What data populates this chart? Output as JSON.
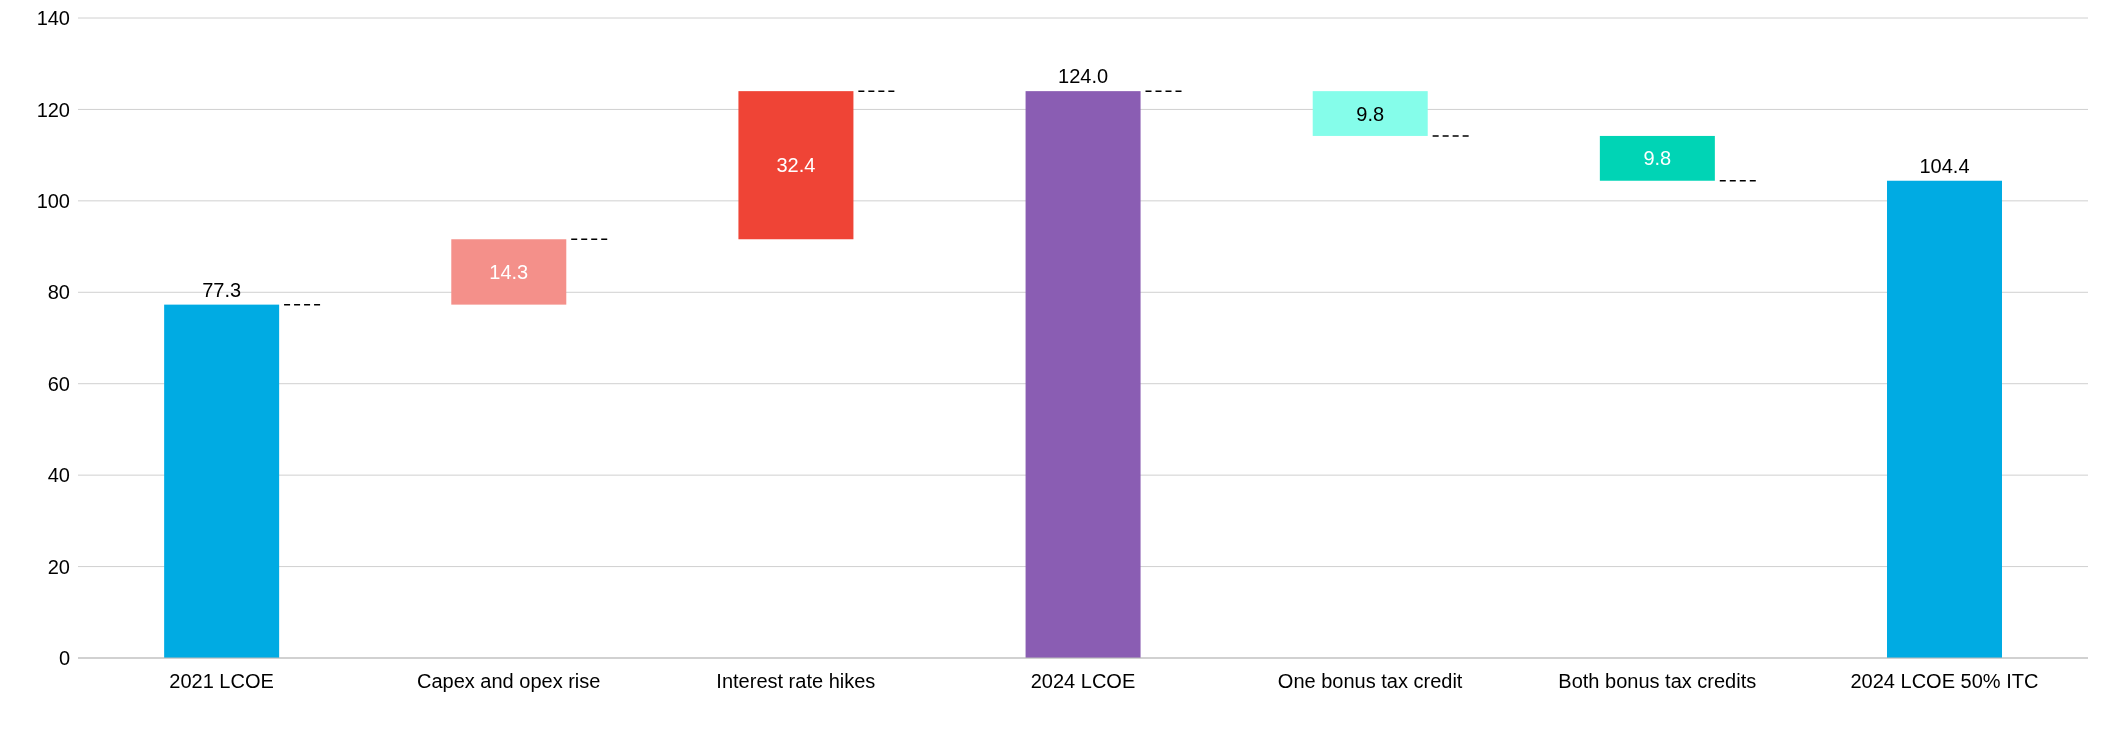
{
  "chart_data": {
    "type": "bar",
    "categories": [
      "2021 LCOE",
      "Capex and opex rise",
      "Interest rate hikes",
      "2024 LCOE",
      "One bonus tax credit",
      "Both bonus tax credits",
      "2024 LCOE 50% ITC"
    ],
    "values": [
      77.3,
      14.3,
      32.4,
      124.0,
      9.8,
      9.8,
      104.4
    ],
    "base": [
      0,
      77.3,
      91.6,
      0,
      114.2,
      104.4,
      0
    ],
    "value_labels": [
      "77.3",
      "14.3",
      "32.4",
      "124.0",
      "9.8",
      "9.8",
      "104.4"
    ],
    "colors": [
      "#00abe3",
      "#f4908a",
      "#ef4436",
      "#8a5db3",
      "#85fdea",
      "#00d4b5",
      "#00abe3"
    ],
    "ylim": [
      0,
      140
    ],
    "yticks": [
      0,
      20,
      40,
      60,
      80,
      100,
      120,
      140
    ],
    "grid": "y"
  }
}
